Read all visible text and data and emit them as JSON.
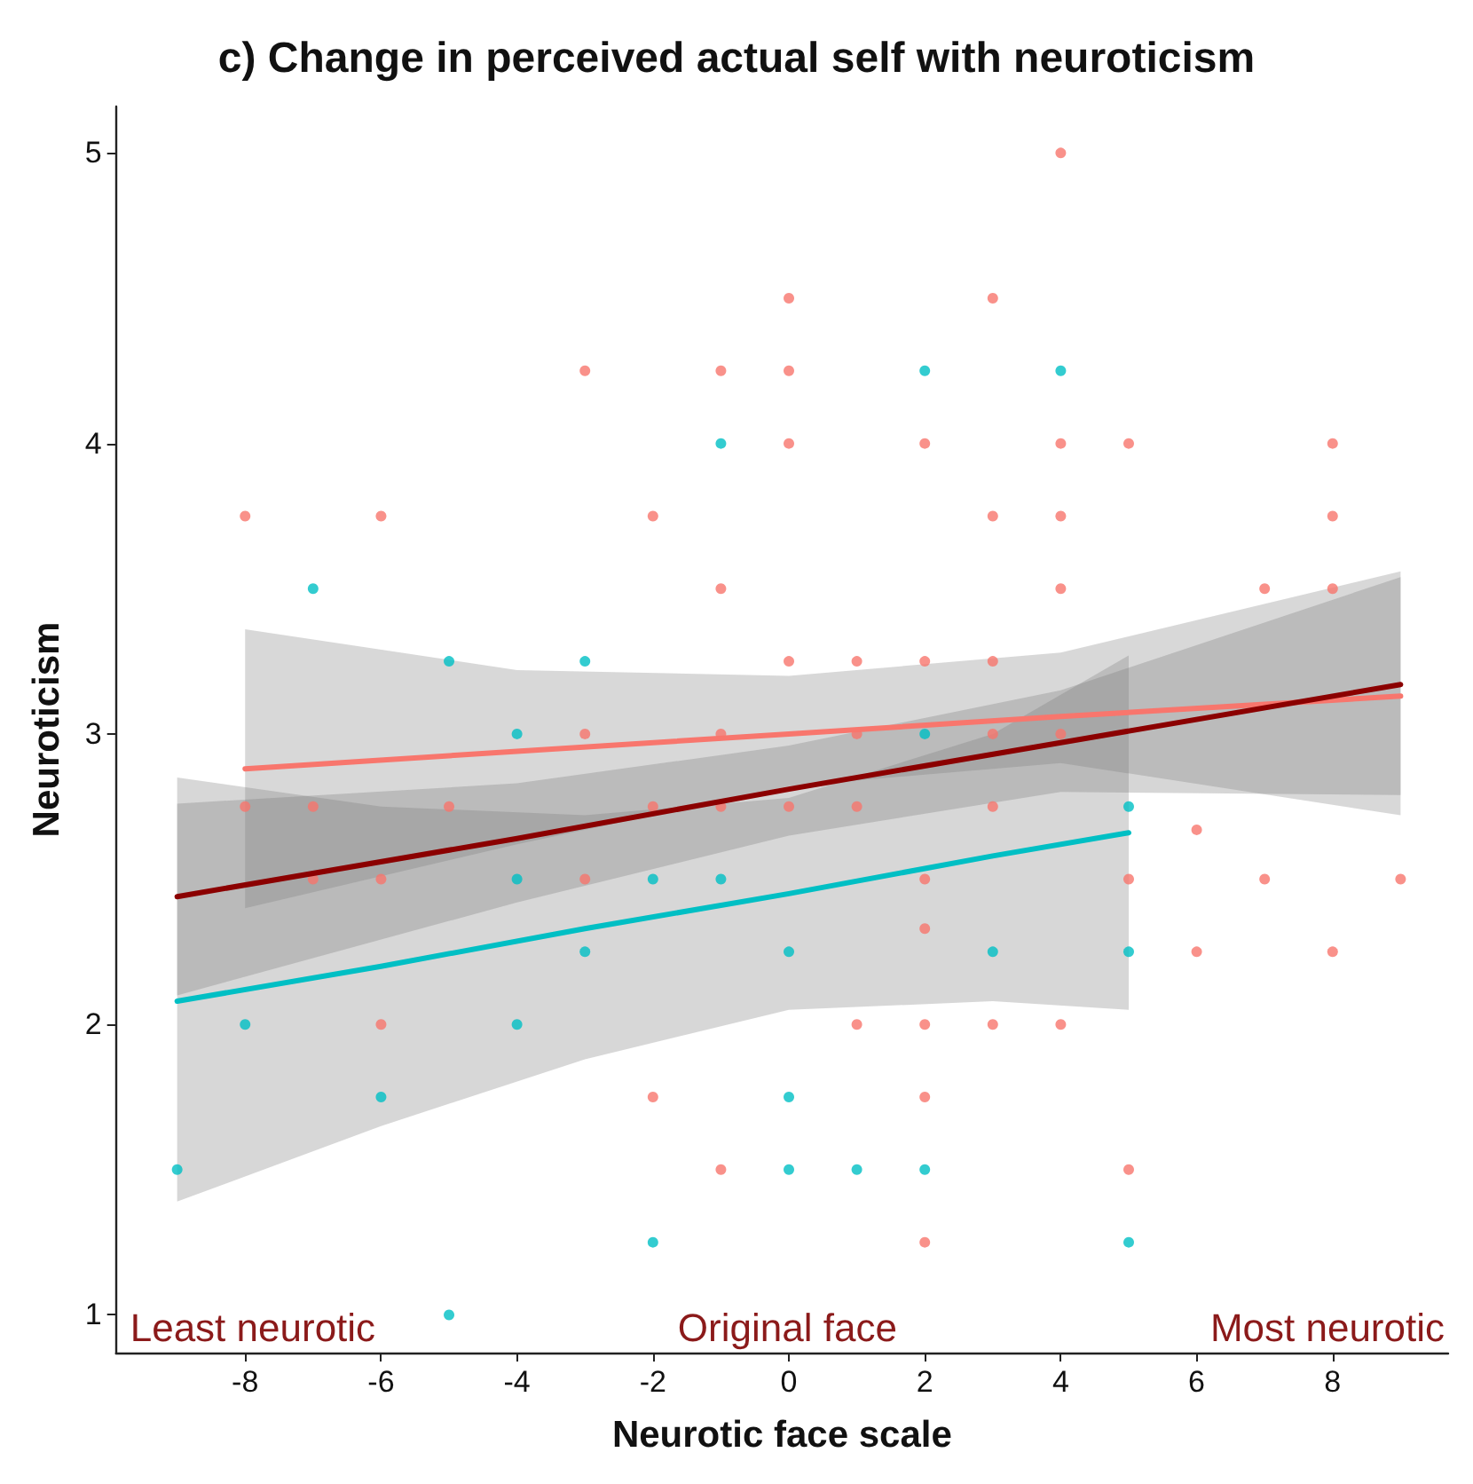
{
  "chart_data": {
    "type": "scatter",
    "title": "c) Change in perceived actual self with neuroticism",
    "xlabel": "Neurotic face scale",
    "ylabel": "Neuroticism",
    "xlim": [
      -9.9,
      9.7
    ],
    "xticks": [
      -8,
      -6,
      -4,
      -2,
      0,
      2,
      4,
      6,
      8
    ],
    "ylim": [
      0.87,
      5.16
    ],
    "yticks": [
      1,
      2,
      3,
      4,
      5
    ],
    "grid": false,
    "marker": "circle",
    "annotations": [
      "Least neurotic",
      "Original face",
      "Most neurotic"
    ],
    "series": [
      {
        "color": "#f8766d",
        "x": [
          -8,
          -8,
          -7,
          -7,
          -6,
          -6,
          -6,
          -5,
          -3,
          -3,
          -3,
          -2,
          -2,
          -2,
          -1,
          -1,
          -1,
          -1,
          -1,
          0,
          0,
          0,
          0,
          0,
          1,
          1,
          1,
          1,
          2,
          2,
          2,
          2,
          2,
          2,
          2,
          3,
          3,
          3,
          3,
          3,
          3,
          4,
          4,
          4,
          4,
          4,
          4,
          5,
          5,
          5,
          6,
          6,
          7,
          7,
          8,
          8,
          8,
          8,
          9
        ],
        "values": [
          3.75,
          2.75,
          2.75,
          2.5,
          3.75,
          2.5,
          2.0,
          2.75,
          4.25,
          3.0,
          2.5,
          3.75,
          2.75,
          1.75,
          4.25,
          3.5,
          3.0,
          2.75,
          1.5,
          4.5,
          4.25,
          4.0,
          3.25,
          2.75,
          3.25,
          3.0,
          2.75,
          2.0,
          4.0,
          3.25,
          2.5,
          2.33,
          2.0,
          1.75,
          1.25,
          4.5,
          3.75,
          3.25,
          3.0,
          2.75,
          2.0,
          5.0,
          4.0,
          3.75,
          3.5,
          3.0,
          2.0,
          4.0,
          2.5,
          1.5,
          2.67,
          2.25,
          3.5,
          2.5,
          4.0,
          3.75,
          3.5,
          2.25,
          2.5
        ]
      },
      {
        "color": "#00bfc4",
        "x": [
          -9,
          -8,
          -7,
          -6,
          -5,
          -5,
          -4,
          -4,
          -4,
          -3,
          -3,
          -2,
          -2,
          -1,
          -1,
          0,
          0,
          0,
          1,
          2,
          2,
          2,
          3,
          4,
          5,
          5,
          5
        ],
        "values": [
          1.5,
          2.0,
          3.5,
          1.75,
          3.25,
          1.0,
          3.0,
          2.5,
          2.0,
          3.25,
          2.25,
          2.5,
          1.25,
          4.0,
          2.5,
          2.25,
          1.75,
          1.5,
          1.5,
          4.25,
          3.0,
          1.5,
          2.25,
          4.25,
          2.75,
          2.25,
          1.25
        ]
      },
      {
        "type": "line",
        "marker": "none",
        "color": "#f8766d",
        "x": [
          -8,
          -4,
          0,
          4,
          9
        ],
        "values": [
          2.88,
          2.94,
          3.0,
          3.06,
          3.13
        ],
        "lower": [
          2.4,
          2.62,
          2.82,
          2.9,
          2.72
        ],
        "upper": [
          3.36,
          3.22,
          3.2,
          3.28,
          3.56
        ]
      },
      {
        "type": "line",
        "marker": "none",
        "color": "#00bfc4",
        "x": [
          -9,
          -6,
          -3,
          0,
          3,
          5
        ],
        "values": [
          2.08,
          2.2,
          2.33,
          2.45,
          2.58,
          2.66
        ],
        "lower": [
          1.39,
          1.65,
          1.88,
          2.05,
          2.08,
          2.05
        ],
        "upper": [
          2.85,
          2.75,
          2.72,
          2.78,
          3.0,
          3.27
        ]
      },
      {
        "type": "line",
        "marker": "none",
        "color": "#8b0000",
        "x": [
          -9,
          -4,
          0,
          4,
          9
        ],
        "values": [
          2.44,
          2.64,
          2.81,
          2.97,
          3.17
        ],
        "lower": [
          2.1,
          2.42,
          2.65,
          2.8,
          2.79
        ],
        "upper": [
          2.76,
          2.83,
          2.96,
          3.15,
          3.54
        ]
      }
    ]
  }
}
